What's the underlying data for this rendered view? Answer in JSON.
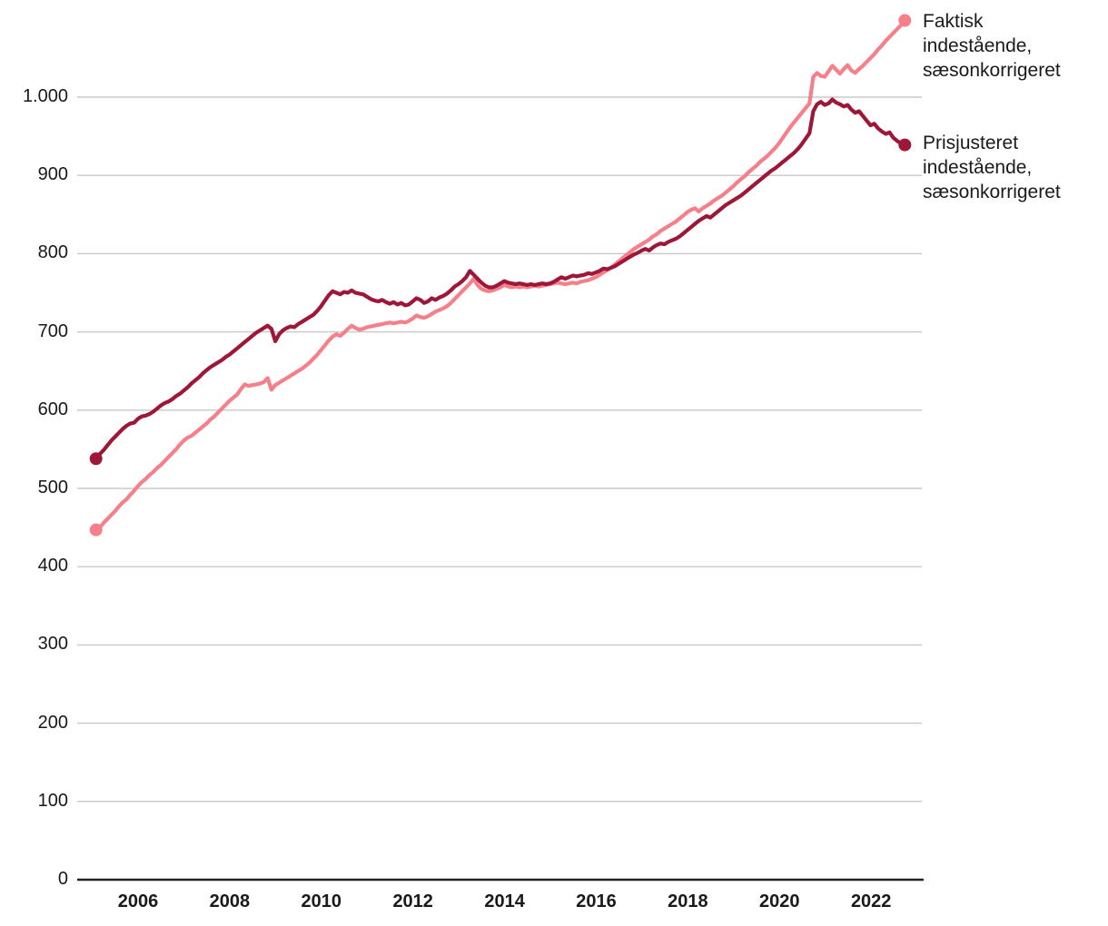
{
  "page": {
    "background": "#ffffff"
  },
  "legend": {
    "items": [
      {
        "label": "Faktisk\nindestående,\nsæsonkorrigeret",
        "color": "#f5808a"
      },
      {
        "label": "Prisjusteret\nindestående,\nsæsonkorrigeret",
        "color": "#9e1638"
      }
    ]
  },
  "chart_data": {
    "type": "line",
    "title": "",
    "xlabel": "",
    "ylabel": "",
    "x_unit": "month",
    "x_start": "2005-02",
    "x_end": "2022-10",
    "ylim": [
      0,
      1100
    ],
    "grid": "horizontal",
    "legend_position": "right-of-line-ends",
    "style": {
      "grid_color": "#c8c8c8",
      "axis_color": "#222222",
      "tick_text_color": "#191919",
      "line_width": 4.2,
      "end_dot_radius": 7
    },
    "y_ticks": [
      {
        "v": 0,
        "label": "0"
      },
      {
        "v": 100,
        "label": "100"
      },
      {
        "v": 200,
        "label": "200"
      },
      {
        "v": 300,
        "label": "300"
      },
      {
        "v": 400,
        "label": "400"
      },
      {
        "v": 500,
        "label": "500"
      },
      {
        "v": 600,
        "label": "600"
      },
      {
        "v": 700,
        "label": "700"
      },
      {
        "v": 800,
        "label": "800"
      },
      {
        "v": 900,
        "label": "900"
      },
      {
        "v": 1000,
        "label": "1.000"
      }
    ],
    "x_ticks": [
      {
        "year": 2006,
        "label": "2006"
      },
      {
        "year": 2008,
        "label": "2008"
      },
      {
        "year": 2010,
        "label": "2010"
      },
      {
        "year": 2012,
        "label": "2012"
      },
      {
        "year": 2014,
        "label": "2014"
      },
      {
        "year": 2016,
        "label": "2016"
      },
      {
        "year": 2018,
        "label": "2018"
      },
      {
        "year": 2020,
        "label": "2020"
      },
      {
        "year": 2022,
        "label": "2022"
      }
    ],
    "series": [
      {
        "name": "Faktisk indestående, sæsonkorrigeret",
        "color": "#f5808a",
        "values": [
          447,
          450,
          456,
          461,
          466,
          471,
          477,
          482,
          486,
          492,
          497,
          503,
          508,
          512,
          517,
          521,
          526,
          530,
          535,
          540,
          545,
          550,
          556,
          561,
          565,
          567,
          571,
          575,
          579,
          583,
          588,
          592,
          597,
          602,
          607,
          612,
          616,
          620,
          627,
          633,
          631,
          632,
          633,
          634,
          636,
          641,
          626,
          632,
          635,
          638,
          641,
          644,
          647,
          650,
          653,
          657,
          661,
          666,
          671,
          677,
          683,
          689,
          694,
          697,
          695,
          699,
          704,
          708,
          705,
          703,
          704,
          706,
          707,
          708,
          709,
          710,
          711,
          712,
          711,
          712,
          713,
          712,
          714,
          717,
          721,
          719,
          718,
          720,
          723,
          726,
          728,
          730,
          733,
          737,
          742,
          747,
          752,
          757,
          762,
          768,
          760,
          755,
          753,
          752,
          753,
          755,
          757,
          760,
          758,
          757,
          758,
          757,
          758,
          757,
          758,
          759,
          758,
          759,
          760,
          761,
          762,
          763,
          762,
          761,
          762,
          763,
          762,
          764,
          765,
          766,
          768,
          770,
          773,
          776,
          779,
          782,
          786,
          790,
          794,
          798,
          802,
          806,
          809,
          812,
          815,
          818,
          822,
          825,
          829,
          832,
          835,
          838,
          841,
          845,
          849,
          853,
          856,
          858,
          854,
          858,
          861,
          864,
          868,
          871,
          874,
          878,
          882,
          886,
          891,
          895,
          899,
          904,
          908,
          912,
          917,
          921,
          925,
          930,
          935,
          941,
          948,
          955,
          962,
          968,
          974,
          980,
          986,
          992,
          1026,
          1031,
          1027,
          1026,
          1033,
          1040,
          1035,
          1030,
          1036,
          1041,
          1034,
          1031,
          1036,
          1040,
          1045,
          1050,
          1055,
          1061,
          1066,
          1072,
          1077,
          1082,
          1087,
          1092,
          1098
        ]
      },
      {
        "name": "Prisjusteret indestående, sæsonkorrigeret",
        "color": "#9e1638",
        "values": [
          538,
          544,
          549,
          555,
          561,
          566,
          571,
          576,
          580,
          583,
          584,
          589,
          592,
          593,
          595,
          598,
          602,
          606,
          609,
          611,
          614,
          618,
          621,
          625,
          629,
          634,
          638,
          642,
          647,
          651,
          655,
          658,
          661,
          664,
          668,
          671,
          675,
          679,
          683,
          687,
          691,
          695,
          699,
          702,
          705,
          708,
          704,
          688,
          697,
          702,
          705,
          707,
          706,
          710,
          713,
          716,
          719,
          722,
          727,
          733,
          740,
          747,
          752,
          750,
          748,
          751,
          750,
          753,
          750,
          749,
          748,
          745,
          742,
          740,
          739,
          741,
          738,
          736,
          738,
          735,
          737,
          734,
          735,
          739,
          743,
          741,
          737,
          739,
          743,
          741,
          744,
          746,
          749,
          753,
          758,
          761,
          765,
          770,
          778,
          773,
          768,
          763,
          759,
          757,
          757,
          759,
          762,
          765,
          763,
          762,
          761,
          762,
          761,
          760,
          761,
          760,
          761,
          762,
          761,
          762,
          764,
          767,
          770,
          768,
          770,
          772,
          771,
          772,
          773,
          775,
          774,
          776,
          778,
          781,
          780,
          782,
          784,
          787,
          790,
          793,
          796,
          799,
          801,
          804,
          806,
          804,
          808,
          811,
          813,
          812,
          815,
          817,
          819,
          822,
          826,
          830,
          834,
          838,
          842,
          845,
          848,
          846,
          850,
          854,
          858,
          862,
          865,
          868,
          871,
          874,
          878,
          882,
          886,
          890,
          894,
          898,
          902,
          906,
          909,
          913,
          917,
          921,
          925,
          929,
          934,
          940,
          947,
          954,
          982,
          991,
          994,
          990,
          992,
          997,
          993,
          991,
          988,
          990,
          984,
          980,
          982,
          976,
          970,
          964,
          966,
          960,
          956,
          953,
          955,
          948,
          944,
          941,
          939
        ]
      }
    ]
  }
}
